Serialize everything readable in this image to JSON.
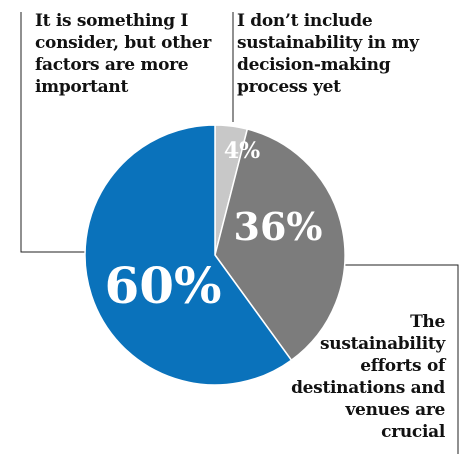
{
  "chart_data": {
    "type": "pie",
    "slices": [
      {
        "label": "I don’t include sustainability in my decision-making process yet",
        "value": 4,
        "display": "4%",
        "color": "#c8c8c8",
        "label_color": "#ffffff"
      },
      {
        "label": "The sustainability efforts of destinations and venues are crucial",
        "value": 36,
        "display": "36%",
        "color": "#7c7c7c",
        "label_color": "#ffffff"
      },
      {
        "label": "It is something I consider, but other factors are more important",
        "value": 60,
        "display": "60%",
        "color": "#0a72bb",
        "label_color": "#ffffff"
      }
    ],
    "legend": "leader-line labels",
    "start_angle": "12 o'clock, clockwise"
  }
}
